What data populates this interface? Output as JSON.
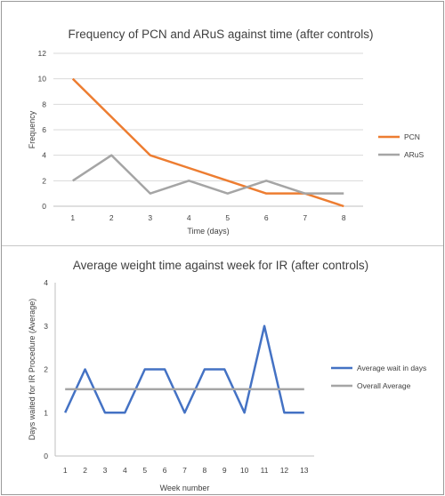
{
  "chart_data": [
    {
      "type": "line",
      "title": "Frequency of PCN and ARuS against time (after controls)",
      "xlabel": "Time (days)",
      "ylabel": "Frequency",
      "categories": [
        "1",
        "2",
        "3",
        "4",
        "5",
        "6",
        "7",
        "8"
      ],
      "ylim": [
        0,
        12
      ],
      "yticks": [
        0,
        2,
        4,
        6,
        8,
        10,
        12
      ],
      "grid": "horizontal",
      "legend": "right",
      "series": [
        {
          "name": "PCN",
          "color": "#ED7D31",
          "values": [
            10,
            7,
            4,
            3,
            2,
            1,
            1,
            0
          ]
        },
        {
          "name": "ARuS",
          "color": "#A5A5A5",
          "values": [
            2,
            4,
            1,
            2,
            1,
            2,
            1,
            1
          ]
        }
      ]
    },
    {
      "type": "line",
      "title": "Average weight time against week for IR (after controls)",
      "xlabel": "Week number",
      "ylabel": "Days waited for IR Procedure (Average)",
      "categories": [
        "1",
        "2",
        "3",
        "4",
        "5",
        "6",
        "7",
        "8",
        "9",
        "10",
        "11",
        "12",
        "13"
      ],
      "ylim": [
        0,
        4
      ],
      "yticks": [
        0,
        1,
        2,
        3,
        4
      ],
      "grid": "none",
      "legend": "right",
      "series": [
        {
          "name": "Average wait in days",
          "color": "#4472C4",
          "values": [
            1,
            2,
            1,
            1,
            2,
            2,
            1,
            2,
            2,
            1,
            3,
            1,
            1
          ]
        },
        {
          "name": "Overall Average",
          "color": "#A5A5A5",
          "values": [
            1.54,
            1.54,
            1.54,
            1.54,
            1.54,
            1.54,
            1.54,
            1.54,
            1.54,
            1.54,
            1.54,
            1.54,
            1.54
          ]
        }
      ]
    }
  ]
}
